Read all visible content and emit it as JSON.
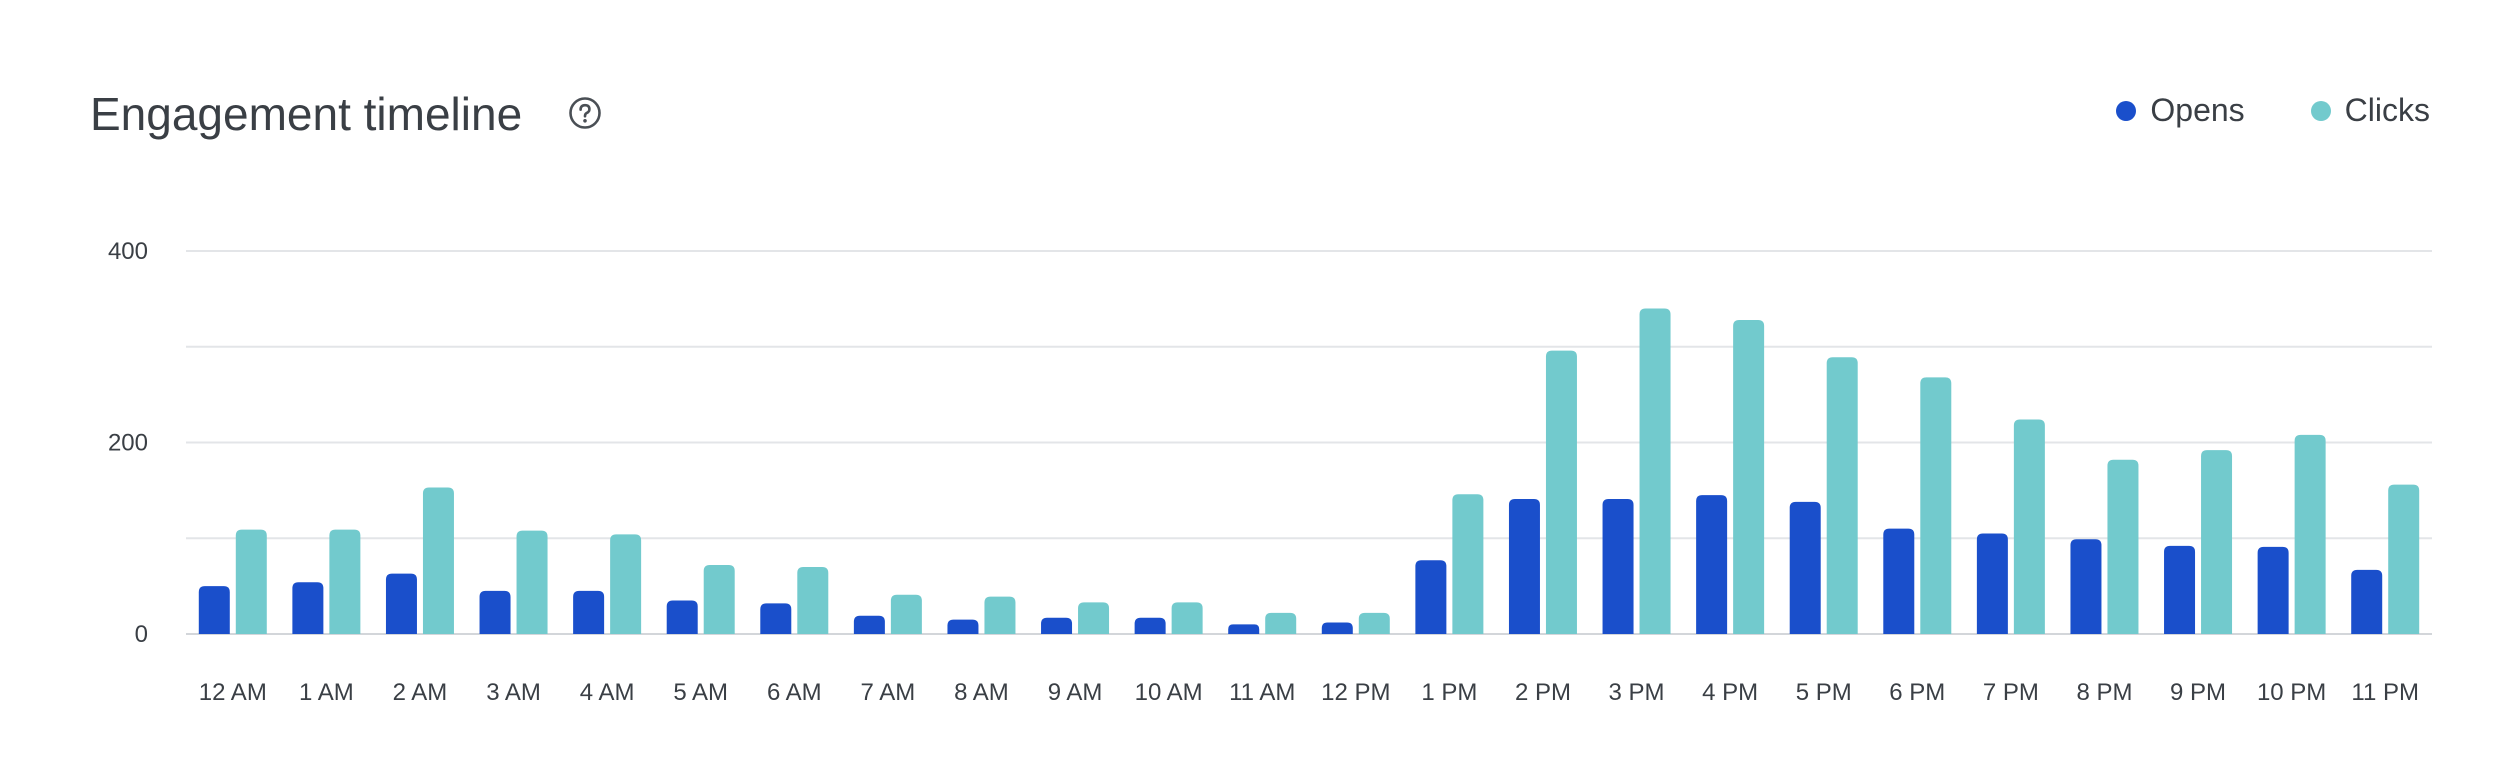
{
  "header": {
    "title": "Engagement timeline",
    "help_icon": "question-circle-icon"
  },
  "legend": [
    {
      "label": "Opens",
      "color": "#1a4fcb"
    },
    {
      "label": "Clicks",
      "color": "#72cacd"
    }
  ],
  "chart_data": {
    "type": "bar",
    "title": "Engagement timeline",
    "xlabel": "",
    "ylabel": "",
    "ylim": [
      0,
      400
    ],
    "yticks": [
      "0",
      "200",
      "400"
    ],
    "grid": true,
    "legend_position": "top-right",
    "categories": [
      "12 AM",
      "1 AM",
      "2 AM",
      "3 AM",
      "4 AM",
      "5 AM",
      "6 AM",
      "7 AM",
      "8 AM",
      "9 AM",
      "10 AM",
      "11 AM",
      "12 PM",
      "1 PM",
      "2 PM",
      "3 PM",
      "4 PM",
      "5 PM",
      "6 PM",
      "7 PM",
      "8 PM",
      "9 PM",
      "10 PM",
      "11 PM"
    ],
    "series": [
      {
        "name": "Opens",
        "color": "#1a4fcb",
        "values": [
          50,
          54,
          63,
          45,
          45,
          35,
          32,
          19,
          15,
          17,
          17,
          10,
          12,
          77,
          141,
          141,
          145,
          138,
          110,
          105,
          99,
          92,
          91,
          67
        ]
      },
      {
        "name": "Clicks",
        "color": "#72cacd",
        "values": [
          109,
          109,
          153,
          108,
          104,
          72,
          70,
          41,
          39,
          33,
          33,
          22,
          22,
          146,
          296,
          340,
          328,
          289,
          268,
          224,
          182,
          192,
          208,
          156
        ]
      }
    ]
  }
}
